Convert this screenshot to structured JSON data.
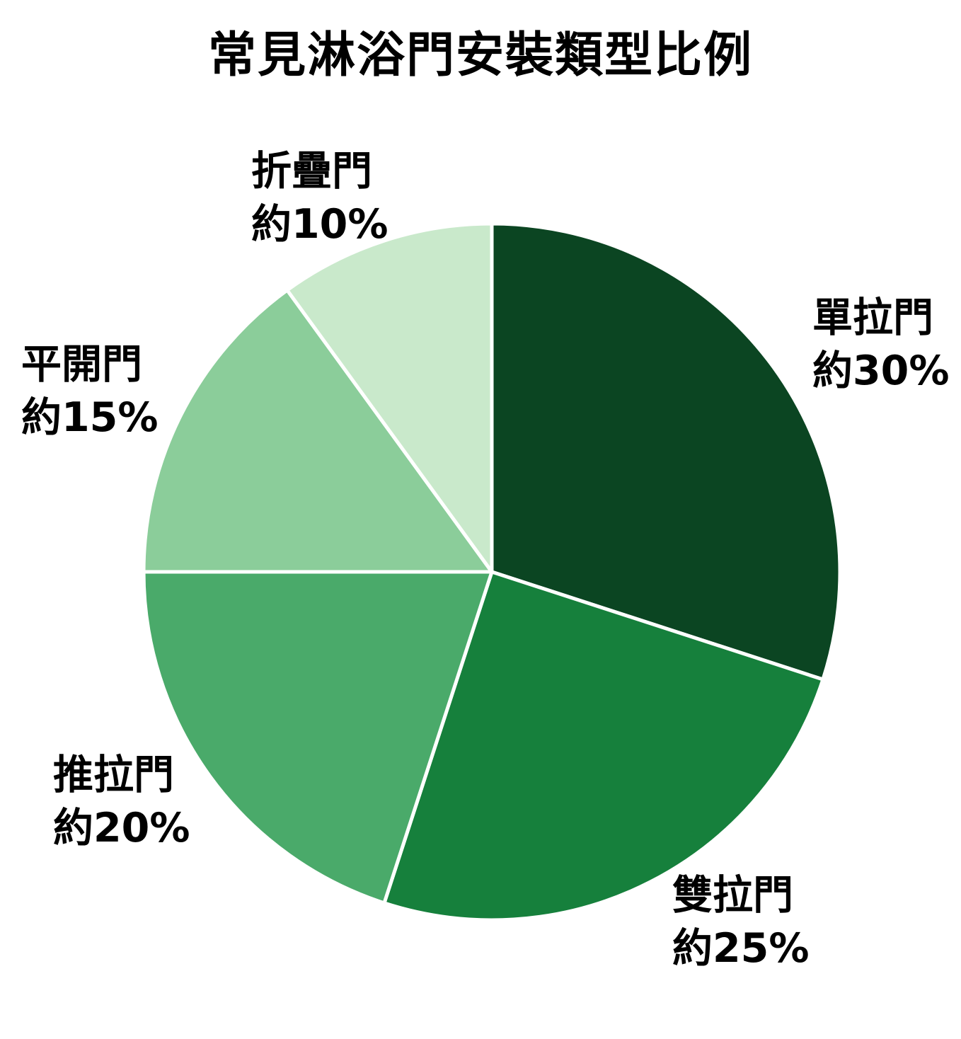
{
  "title": "常見淋浴門安裝類型比例",
  "chart_data": {
    "type": "pie",
    "title": "常見淋浴門安裝類型比例",
    "start_angle_deg": 0,
    "direction": "clockwise",
    "legend": "none",
    "slice_border_color": "#ffffff",
    "slices": [
      {
        "label": "單拉門",
        "value": 30,
        "value_label": "約30%",
        "color": "#0b4522"
      },
      {
        "label": "雙拉門",
        "value": 25,
        "value_label": "約25%",
        "color": "#16803c"
      },
      {
        "label": "推拉門",
        "value": 20,
        "value_label": "約20%",
        "color": "#4aaa6a"
      },
      {
        "label": "平開門",
        "value": 15,
        "value_label": "約15%",
        "color": "#8bcd9a"
      },
      {
        "label": "折疊門",
        "value": 10,
        "value_label": "約10%",
        "color": "#c9e9cb"
      }
    ]
  }
}
